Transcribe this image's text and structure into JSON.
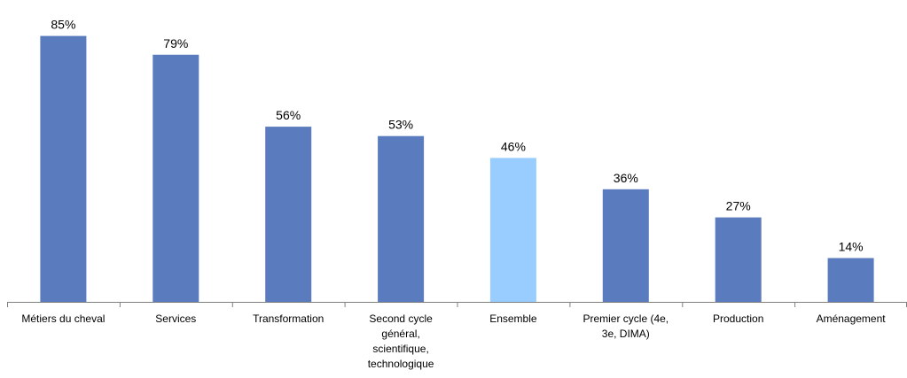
{
  "chart_data": {
    "type": "bar",
    "categories": [
      [
        "Métiers du cheval"
      ],
      [
        "Services"
      ],
      [
        "Transformation"
      ],
      [
        "Second cycle",
        "général,",
        "scientifique,",
        "technologique"
      ],
      [
        "Ensemble"
      ],
      [
        "Premier cycle (4e,",
        "3e, DIMA)"
      ],
      [
        "Production"
      ],
      [
        "Aménagement"
      ]
    ],
    "values": [
      85,
      79,
      56,
      53,
      46,
      36,
      27,
      14
    ],
    "value_labels": [
      "85%",
      "79%",
      "56%",
      "53%",
      "46%",
      "36%",
      "27%",
      "14%"
    ],
    "ylim": [
      0,
      88
    ],
    "title": "",
    "xlabel": "",
    "ylabel": "",
    "grid": false,
    "legend": "none",
    "colors": {
      "bar": "#5a7bbd",
      "highlight": "#99ccff",
      "axis": "#808080"
    },
    "highlight_index": 4
  }
}
